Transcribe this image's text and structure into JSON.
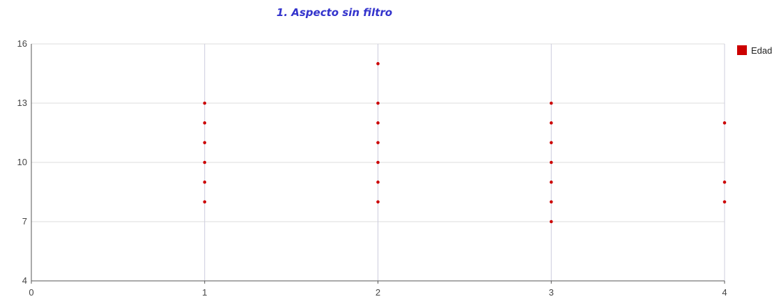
{
  "chart_data": {
    "type": "scatter",
    "title": "1. Aspecto sin filtro",
    "xlabel": "",
    "ylabel": "",
    "xlim": [
      0,
      4
    ],
    "ylim": [
      4,
      16
    ],
    "x_ticks": [
      0,
      1,
      2,
      3,
      4
    ],
    "y_ticks": [
      4,
      7,
      10,
      13,
      16
    ],
    "grid": true,
    "legend_position": "top-right",
    "series": [
      {
        "name": "Edad",
        "color": "#cc0000",
        "points": [
          {
            "x": 1,
            "y": 8
          },
          {
            "x": 1,
            "y": 9
          },
          {
            "x": 1,
            "y": 10
          },
          {
            "x": 1,
            "y": 11
          },
          {
            "x": 1,
            "y": 12
          },
          {
            "x": 1,
            "y": 13
          },
          {
            "x": 2,
            "y": 8
          },
          {
            "x": 2,
            "y": 9
          },
          {
            "x": 2,
            "y": 10
          },
          {
            "x": 2,
            "y": 11
          },
          {
            "x": 2,
            "y": 12
          },
          {
            "x": 2,
            "y": 13
          },
          {
            "x": 2,
            "y": 15
          },
          {
            "x": 3,
            "y": 7
          },
          {
            "x": 3,
            "y": 8
          },
          {
            "x": 3,
            "y": 9
          },
          {
            "x": 3,
            "y": 10
          },
          {
            "x": 3,
            "y": 11
          },
          {
            "x": 3,
            "y": 12
          },
          {
            "x": 3,
            "y": 13
          },
          {
            "x": 4,
            "y": 8
          },
          {
            "x": 4,
            "y": 9
          },
          {
            "x": 4,
            "y": 12
          }
        ]
      }
    ]
  }
}
